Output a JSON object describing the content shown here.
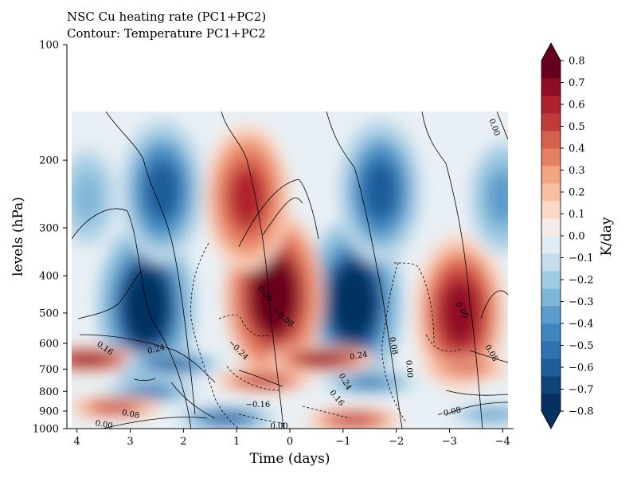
{
  "chart_data": {
    "type": "heatmap",
    "title": "NSC Cu heating rate (PC1+PC2)",
    "subtitle": "Contour: Temperature PC1+PC2",
    "xlabel": "Time (days)",
    "ylabel": "levels (hPa)",
    "x_ticks": [
      "4",
      "3",
      "2",
      "1",
      "0",
      "−1",
      "−2",
      "−3",
      "−4"
    ],
    "x_tick_values": [
      4,
      3,
      2,
      1,
      0,
      -1,
      -2,
      -3,
      -4
    ],
    "xlim": [
      4.1,
      -4.1
    ],
    "y_ticks": [
      "100",
      "200",
      "300",
      "400",
      "500",
      "600",
      "700",
      "800",
      "900",
      "1000"
    ],
    "y_tick_values": [
      100,
      200,
      300,
      400,
      500,
      600,
      700,
      800,
      900,
      1000
    ],
    "ylim": [
      1000,
      100
    ],
    "y_scale": "log (pressure)",
    "data_top_hPa": 150,
    "colorbar": {
      "label": "K/day",
      "ticks": [
        "0.8",
        "0.7",
        "0.6",
        "0.5",
        "0.4",
        "0.3",
        "0.2",
        "0.1",
        "0.0",
        "−0.1",
        "−0.2",
        "−0.3",
        "−0.4",
        "−0.5",
        "−0.6",
        "−0.7"
      ],
      "bottom_tick_overlap": "−0.8",
      "min": -0.8,
      "max": 0.8,
      "step": 0.05,
      "extend": "both",
      "colormap": "RdBu_r"
    },
    "heating_centers": [
      {
        "t": 2.7,
        "p": 480,
        "value": -0.8
      },
      {
        "t": -1.2,
        "p": 470,
        "value": -0.8
      },
      {
        "t": 0.3,
        "p": 450,
        "value": 0.8
      },
      {
        "t": -3.2,
        "p": 500,
        "value": 0.7
      },
      {
        "t": 0.8,
        "p": 250,
        "value": 0.6
      },
      {
        "t": 2.4,
        "p": 240,
        "value": -0.6
      },
      {
        "t": -1.7,
        "p": 240,
        "value": -0.6
      },
      {
        "t": 3.8,
        "p": 660,
        "value": 0.7
      },
      {
        "t": -0.6,
        "p": 660,
        "value": 0.7
      },
      {
        "t": 2.2,
        "p": 680,
        "value": -0.6
      },
      {
        "t": 0.5,
        "p": 750,
        "value": 0.55
      },
      {
        "t": 2.6,
        "p": 800,
        "value": -0.5
      },
      {
        "t": -1.5,
        "p": 760,
        "value": -0.5
      },
      {
        "t": 3.3,
        "p": 880,
        "value": 0.5
      },
      {
        "t": -1.2,
        "p": 950,
        "value": 0.55
      },
      {
        "t": -3.3,
        "p": 700,
        "value": 0.4
      },
      {
        "t": 3.8,
        "p": 250,
        "value": -0.3
      },
      {
        "t": -4,
        "p": 250,
        "value": -0.4
      },
      {
        "t": 1.2,
        "p": 940,
        "value": -0.6
      },
      {
        "t": -3.8,
        "p": 920,
        "value": -0.4
      }
    ],
    "contour_labels": [
      {
        "text": "0.00",
        "t": -3.8,
        "p": 165,
        "rotate": 70
      },
      {
        "text": "0.00",
        "t": 0.5,
        "p": 450,
        "rotate": 50
      },
      {
        "text": "−0.08",
        "t": 0.15,
        "p": 520,
        "rotate": 40
      },
      {
        "text": "0.00",
        "t": -3.2,
        "p": 495,
        "rotate": 60
      },
      {
        "text": "0.16",
        "t": 3.5,
        "p": 625,
        "rotate": 35
      },
      {
        "text": "0.24",
        "t": 2.5,
        "p": 630,
        "rotate": -15
      },
      {
        "text": "−0.24",
        "t": 1.0,
        "p": 630,
        "rotate": 45
      },
      {
        "text": "0.08",
        "t": -1.9,
        "p": 610,
        "rotate": 80
      },
      {
        "text": "0.24",
        "t": -1.3,
        "p": 655,
        "rotate": -10
      },
      {
        "text": "0.08",
        "t": -3.75,
        "p": 640,
        "rotate": 60
      },
      {
        "text": "0.00",
        "t": -2.2,
        "p": 700,
        "rotate": 85
      },
      {
        "text": "0.24",
        "t": -1.0,
        "p": 760,
        "rotate": 60
      },
      {
        "text": "0.16",
        "t": -0.85,
        "p": 840,
        "rotate": 50
      },
      {
        "text": "−0.16",
        "t": 0.6,
        "p": 880,
        "rotate": 0
      },
      {
        "text": "−0.08",
        "t": -3.0,
        "p": 920,
        "rotate": -12
      },
      {
        "text": "0.08",
        "t": 3.0,
        "p": 930,
        "rotate": 12
      },
      {
        "text": "0.00",
        "t": 3.5,
        "p": 990,
        "rotate": 10
      },
      {
        "text": "0.00",
        "t": 0.2,
        "p": 1000,
        "rotate": 0
      }
    ]
  }
}
